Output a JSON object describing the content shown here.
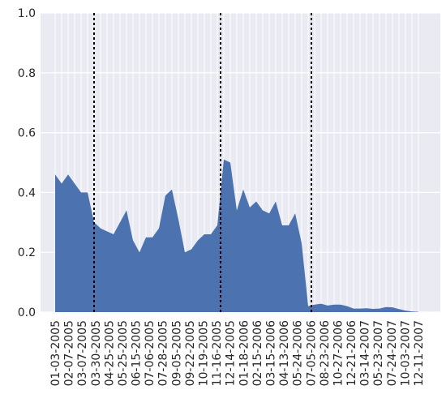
{
  "chart_data": {
    "type": "area",
    "title": "",
    "xlabel": "",
    "ylabel": "",
    "ylim": [
      0,
      1
    ],
    "y_ticks": [
      0.0,
      0.2,
      0.4,
      0.6,
      0.8,
      1.0
    ],
    "y_tick_labels": [
      "0.0",
      "0.2",
      "0.4",
      "0.6",
      "0.8",
      "1.0"
    ],
    "x_tick_labels": [
      "01-03-2005",
      "02-07-2005",
      "03-07-2005",
      "03-30-2005",
      "04-25-2005",
      "05-25-2005",
      "06-15-2005",
      "07-06-2005",
      "07-28-2005",
      "09-05-2005",
      "09-22-2005",
      "10-19-2005",
      "11-16-2005",
      "12-14-2005",
      "01-18-2006",
      "02-15-2006",
      "03-15-2006",
      "04-13-2006",
      "05-24-2006",
      "07-05-2006",
      "08-23-2006",
      "10-27-2006",
      "12-21-2006",
      "03-14-2007",
      "05-23-2007",
      "07-24-2007",
      "10-03-2007",
      "12-11-2007"
    ],
    "grid": true,
    "fill_color": "#4c72b0",
    "background_color": "#eaeaf2",
    "series": [
      {
        "values": [
          0.46,
          0.43,
          0.46,
          0.43,
          0.4,
          0.4,
          0.3,
          0.28,
          0.27,
          0.26,
          0.3,
          0.34,
          0.24,
          0.2,
          0.25,
          0.25,
          0.28,
          0.39,
          0.41,
          0.31,
          0.2,
          0.21,
          0.24,
          0.26,
          0.26,
          0.29,
          0.51,
          0.5,
          0.34,
          0.41,
          0.35,
          0.37,
          0.34,
          0.33,
          0.37,
          0.29,
          0.29,
          0.33,
          0.23,
          0.02,
          0.025,
          0.028,
          0.022,
          0.025,
          0.025,
          0.02,
          0.012,
          0.012,
          0.013,
          0.011,
          0.012,
          0.017,
          0.016,
          0.01,
          0.005,
          0.002,
          0.001
        ]
      }
    ],
    "vlines": [
      {
        "x_index": 6,
        "style": "dotted",
        "color": "#000000"
      },
      {
        "x_index": 25.5,
        "style": "dotted",
        "color": "#000000"
      },
      {
        "x_index": 39.5,
        "style": "dotted",
        "color": "#000000"
      }
    ]
  }
}
